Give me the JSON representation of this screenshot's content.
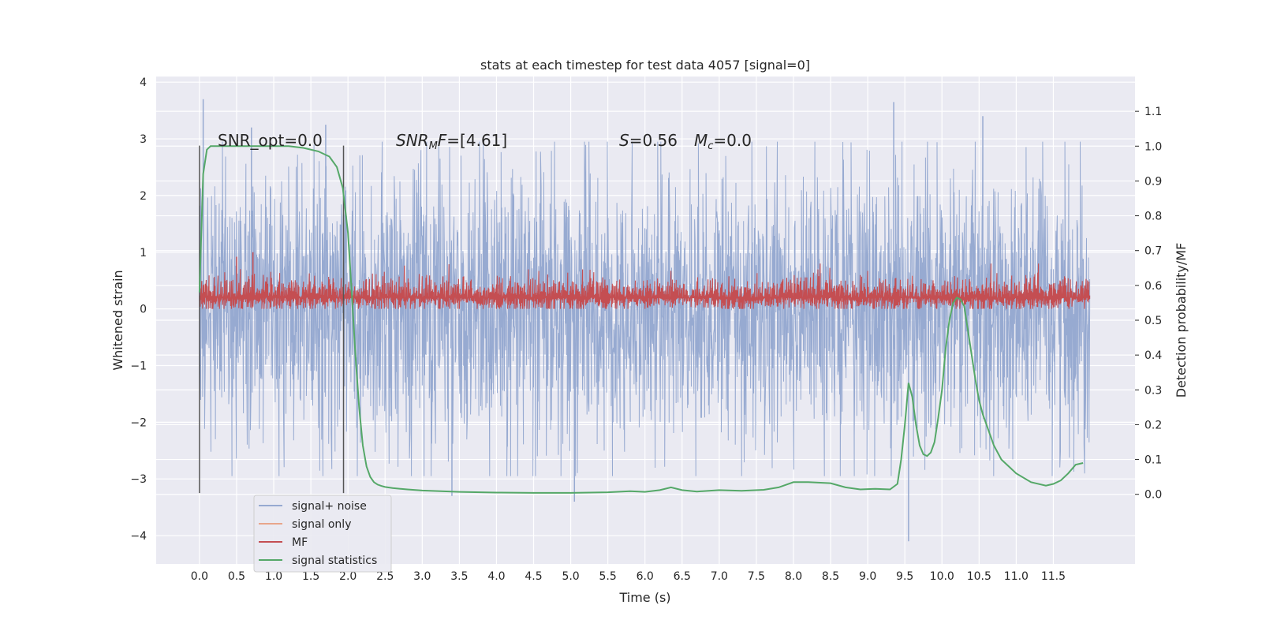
{
  "chart_data": {
    "type": "line",
    "title": "stats at each timestep for test data 4057 [signal=0]",
    "xlabel": "Time (s)",
    "ylabel": "Whitened strain",
    "y2label": "Detection probability/MF",
    "xlim": [
      -0.5833,
      12.6
    ],
    "ylim": [
      -4.5,
      4.1
    ],
    "y2lim": [
      -0.2,
      1.2
    ],
    "xticks": [
      0.0,
      0.5,
      1.0,
      1.5,
      2.0,
      2.5,
      3.0,
      3.5,
      4.0,
      4.5,
      5.0,
      5.5,
      6.0,
      6.5,
      7.0,
      7.5,
      8.0,
      8.5,
      9.0,
      9.5,
      10.0,
      10.5,
      11.0,
      11.5
    ],
    "xtick_labels": [
      "0.0",
      "0.5",
      "1.0",
      "1.5",
      "2.0",
      "2.5",
      "3.0",
      "3.5",
      "4.0",
      "4.5",
      "5.0",
      "5.5",
      "6.0",
      "6.5",
      "7.0",
      "7.5",
      "8.0",
      "8.5",
      "9.0",
      "9.5",
      "10.0",
      "10.5",
      "11.0",
      "11.5"
    ],
    "yticks": [
      -4,
      -3,
      -2,
      -1,
      0,
      1,
      2,
      3,
      4
    ],
    "ytick_labels": [
      "−4",
      "−3",
      "−2",
      "−1",
      "0",
      "1",
      "2",
      "3",
      "4"
    ],
    "y2ticks": [
      0.0,
      0.1,
      0.2,
      0.3,
      0.4,
      0.5,
      0.6,
      0.7,
      0.8,
      0.9,
      1.0,
      1.1
    ],
    "y2tick_labels": [
      "0.0",
      "0.1",
      "0.2",
      "0.3",
      "0.4",
      "0.5",
      "0.6",
      "0.7",
      "0.8",
      "0.9",
      "1.0",
      "1.1"
    ],
    "grid": true,
    "legend_position": "lower-left",
    "annotations": {
      "snr_opt": "SNR_opt=0.0",
      "snr_mf_sym": "SNR",
      "snr_mf_sub": "M",
      "snr_mf_f": "F",
      "snr_mf_val": "=[4.61]",
      "s_sym": "S",
      "s_val": "=0.56",
      "mc_sym": "M",
      "mc_sub": "c",
      "mc_val": "=0.0"
    },
    "vlines": [
      0.0,
      1.94
    ],
    "series": [
      {
        "name": "signal+ noise",
        "color": "#97aad1",
        "axis": "left",
        "kind": "noise",
        "x_range": [
          0.0,
          11.99
        ],
        "amplitude": 1.45,
        "peaks": [
          [
            0.05,
            3.7
          ],
          [
            0.7,
            3.2
          ],
          [
            1.7,
            3.25
          ],
          [
            9.55,
            -4.1
          ],
          [
            10.55,
            3.4
          ],
          [
            9.35,
            3.65
          ],
          [
            3.4,
            -3.3
          ],
          [
            5.05,
            -3.4
          ]
        ]
      },
      {
        "name": "signal only",
        "color": "#e8a68b",
        "axis": "left",
        "kind": "flat",
        "values": []
      },
      {
        "name": "MF",
        "color": "#c44e52",
        "axis": "left",
        "kind": "mf",
        "x_range": [
          0.0,
          11.99
        ],
        "baseline": 0.2,
        "amplitude": 0.25,
        "peaks": [
          [
            0.72,
            1.0
          ],
          [
            0.5,
            0.92
          ]
        ]
      },
      {
        "name": "signal statistics",
        "color": "#55a868",
        "axis": "right",
        "kind": "line",
        "x": [
          0.0,
          0.05,
          0.1,
          0.15,
          0.2,
          0.4,
          0.6,
          0.8,
          1.0,
          1.2,
          1.4,
          1.6,
          1.75,
          1.85,
          1.93,
          2.0,
          2.05,
          2.1,
          2.15,
          2.2,
          2.25,
          2.3,
          2.35,
          2.4,
          2.45,
          2.5,
          2.6,
          2.8,
          3.0,
          3.5,
          4.0,
          4.5,
          5.0,
          5.5,
          5.8,
          6.0,
          6.2,
          6.35,
          6.5,
          6.7,
          7.0,
          7.3,
          7.6,
          7.8,
          8.0,
          8.2,
          8.5,
          8.7,
          8.9,
          9.1,
          9.3,
          9.4,
          9.45,
          9.5,
          9.55,
          9.6,
          9.65,
          9.7,
          9.75,
          9.8,
          9.85,
          9.9,
          9.95,
          10.0,
          10.05,
          10.1,
          10.15,
          10.2,
          10.25,
          10.3,
          10.35,
          10.4,
          10.45,
          10.5,
          10.55,
          10.6,
          10.7,
          10.8,
          10.9,
          11.0,
          11.2,
          11.4,
          11.5,
          11.6,
          11.7,
          11.8,
          11.9
        ],
        "y": [
          0.58,
          0.92,
          0.99,
          1.0,
          1.0,
          1.0,
          1.0,
          1.0,
          1.0,
          1.0,
          0.995,
          0.985,
          0.97,
          0.94,
          0.88,
          0.75,
          0.58,
          0.4,
          0.25,
          0.14,
          0.08,
          0.05,
          0.035,
          0.028,
          0.024,
          0.021,
          0.018,
          0.014,
          0.011,
          0.007,
          0.005,
          0.004,
          0.004,
          0.006,
          0.009,
          0.007,
          0.012,
          0.02,
          0.012,
          0.008,
          0.012,
          0.01,
          0.013,
          0.02,
          0.035,
          0.035,
          0.032,
          0.02,
          0.014,
          0.016,
          0.014,
          0.03,
          0.1,
          0.2,
          0.32,
          0.28,
          0.2,
          0.14,
          0.115,
          0.11,
          0.12,
          0.15,
          0.22,
          0.3,
          0.42,
          0.5,
          0.55,
          0.565,
          0.56,
          0.54,
          0.47,
          0.4,
          0.33,
          0.27,
          0.23,
          0.2,
          0.14,
          0.1,
          0.08,
          0.06,
          0.035,
          0.025,
          0.03,
          0.04,
          0.06,
          0.085,
          0.09
        ]
      }
    ]
  }
}
